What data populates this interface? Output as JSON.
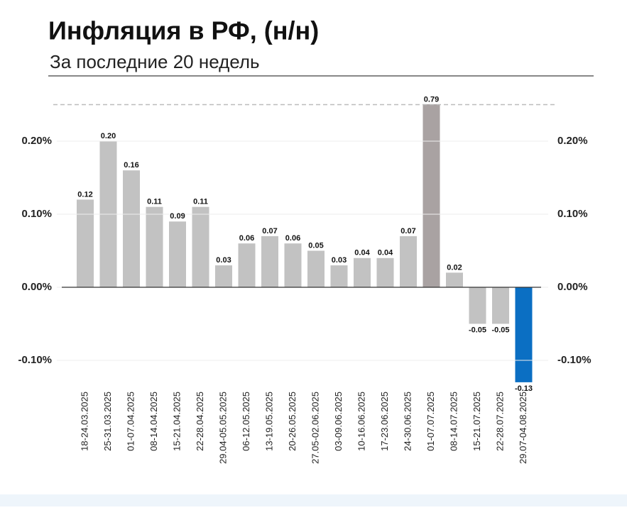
{
  "chart_data": {
    "type": "bar",
    "title": "Инфляция в РФ, (н/н)",
    "subtitle": "За последние 20 недель",
    "categories": [
      "18-24.03.2025",
      "25-31.03.2025",
      "01-07.04.2025",
      "08-14.04.2025",
      "15-21.04.2025",
      "22-28.04.2025",
      "29.04-05.05.2025",
      "06-12.05.2025",
      "13-19.05.2025",
      "20-26.05.2025",
      "27.05-02.06.2025",
      "03-09.06.2025",
      "10-16.06.2025",
      "17-23.06.2025",
      "24-30.06.2025",
      "01-07.07.2025",
      "08-14.07.2025",
      "15-21.07.2025",
      "22-28.07.2025",
      "29.07-04.08.2025"
    ],
    "values": [
      0.12,
      0.2,
      0.16,
      0.11,
      0.09,
      0.11,
      0.03,
      0.06,
      0.07,
      0.06,
      0.05,
      0.03,
      0.04,
      0.04,
      0.07,
      0.79,
      0.02,
      -0.05,
      -0.05,
      -0.13
    ],
    "value_labels": [
      "0.12",
      "0.20",
      "0.16",
      "0.11",
      "0.09",
      "0.11",
      "0.03",
      "0.06",
      "0.07",
      "0.06",
      "0.05",
      "0.03",
      "0.04",
      "0.04",
      "0.07",
      "0.79",
      "0.02",
      "-0.05",
      "-0.05",
      "-0.13"
    ],
    "colors": [
      "#c2c2c2",
      "#c2c2c2",
      "#c2c2c2",
      "#c2c2c2",
      "#c2c2c2",
      "#c2c2c2",
      "#c2c2c2",
      "#c2c2c2",
      "#c2c2c2",
      "#c2c2c2",
      "#c2c2c2",
      "#c2c2c2",
      "#c2c2c2",
      "#c2c2c2",
      "#c2c2c2",
      "#a9a2a2",
      "#c2c2c2",
      "#c2c2c2",
      "#c2c2c2",
      "#0b6fc3"
    ],
    "ylim": [
      -0.15,
      0.25
    ],
    "yticks": [
      {
        "value": -0.1,
        "label": "-0.10%"
      },
      {
        "value": 0,
        "label": "0.00%"
      },
      {
        "value": 0.1,
        "label": "0.10%"
      },
      {
        "value": 0.2,
        "label": "0.20%"
      }
    ],
    "grid": true
  }
}
